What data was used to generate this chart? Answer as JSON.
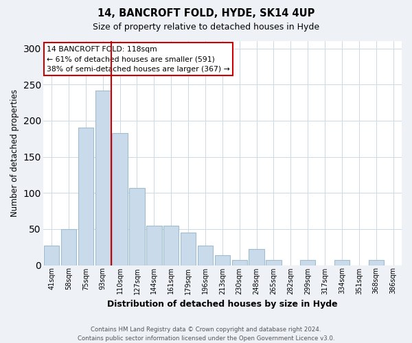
{
  "title1": "14, BANCROFT FOLD, HYDE, SK14 4UP",
  "title2": "Size of property relative to detached houses in Hyde",
  "xlabel": "Distribution of detached houses by size in Hyde",
  "ylabel": "Number of detached properties",
  "categories": [
    "41sqm",
    "58sqm",
    "75sqm",
    "93sqm",
    "110sqm",
    "127sqm",
    "144sqm",
    "161sqm",
    "179sqm",
    "196sqm",
    "213sqm",
    "230sqm",
    "248sqm",
    "265sqm",
    "282sqm",
    "299sqm",
    "317sqm",
    "334sqm",
    "351sqm",
    "368sqm",
    "386sqm"
  ],
  "values": [
    27,
    50,
    190,
    242,
    183,
    107,
    55,
    55,
    45,
    27,
    14,
    7,
    22,
    7,
    0,
    7,
    0,
    7,
    0,
    7,
    0
  ],
  "bar_color": "#c9daea",
  "bar_edge_color": "#a0bcd0",
  "vline_x": 3.5,
  "vline_color": "#cc0000",
  "annotation_text": "14 BANCROFT FOLD: 118sqm\n← 61% of detached houses are smaller (591)\n38% of semi-detached houses are larger (367) →",
  "annotation_box_color": "#ffffff",
  "annotation_box_edge_color": "#cc0000",
  "ylim": [
    0,
    310
  ],
  "yticks": [
    0,
    50,
    100,
    150,
    200,
    250,
    300
  ],
  "footer": "Contains HM Land Registry data © Crown copyright and database right 2024.\nContains public sector information licensed under the Open Government Licence v3.0.",
  "bg_color": "#eef2f7",
  "plot_bg_color": "#ffffff",
  "grid_color": "#ccd8e4"
}
